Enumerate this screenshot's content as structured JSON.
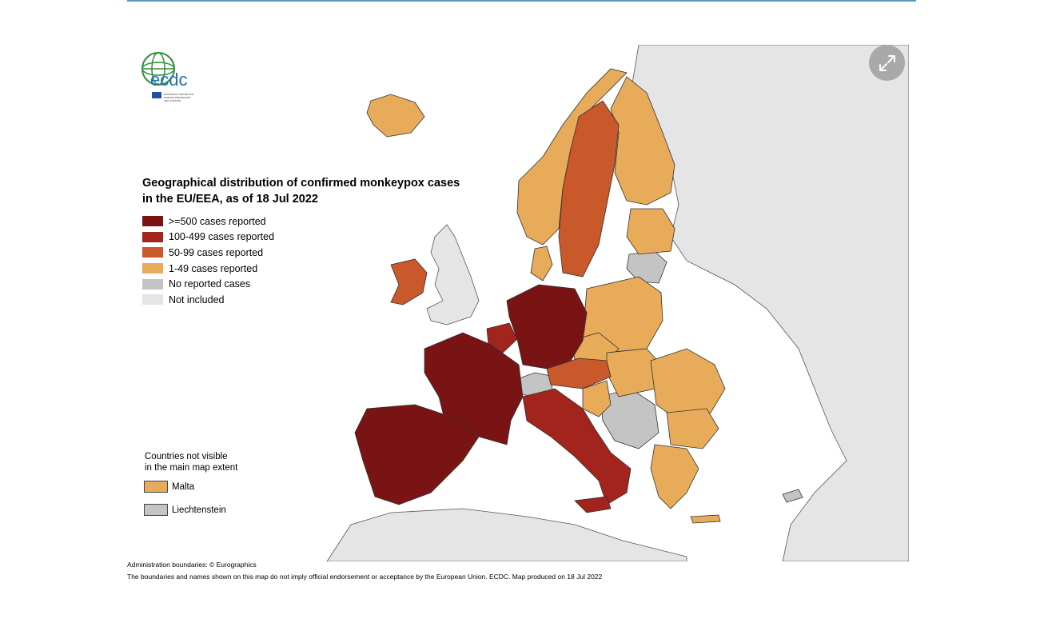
{
  "map": {
    "title_line1": "Geographical distribution of confirmed monkeypox cases",
    "title_line2": "in the EU/EEA, as of 18 Jul 2022",
    "legend": [
      {
        "label": ">=500 cases reported",
        "color": "#7a1414"
      },
      {
        "label": "100-499 cases reported",
        "color": "#a3231d"
      },
      {
        "label": "50-99 cases reported",
        "color": "#c9582a"
      },
      {
        "label": "1-49 cases reported",
        "color": "#e8ab5a"
      },
      {
        "label": "No reported cases",
        "color": "#c4c4c4"
      },
      {
        "label": "Not included",
        "color": "#e5e5e5"
      }
    ],
    "not_visible": {
      "title_line1": "Countries not visible",
      "title_line2": "in the main map extent",
      "items": [
        {
          "label": "Malta",
          "color": "#e8ab5a"
        },
        {
          "label": "Liechtenstein",
          "color": "#c4c4c4"
        }
      ]
    },
    "footer_line1": "Administration boundaries: © Eurographics",
    "footer_line2": "The boundaries and names shown on this map do not imply official endorsement or acceptance by the European Union. ECDC. Map produced on 18 Jul 2022",
    "logo_text": "ecdc",
    "logo_subtext": "EUROPEAN CENTRE FOR DISEASE PREVENTION AND CONTROL",
    "expand_icon": "expand-icon",
    "colors": {
      "sea": "#ffffff",
      "not_included": "#e5e5e5",
      "none": "#c4c4c4",
      "c1_49": "#e8ab5a",
      "c50_99": "#c9582a",
      "c100_499": "#a3231d",
      "c500": "#7a1414"
    }
  }
}
